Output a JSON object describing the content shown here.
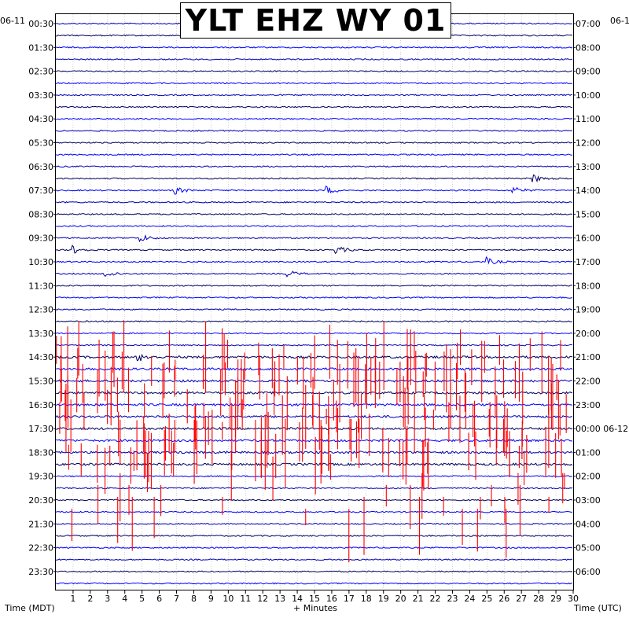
{
  "title": "YLT EHZ WY 01",
  "left_date": "06-11",
  "right_date": "06-1",
  "left_axis_title": "Time (MDT)",
  "right_axis_title": "Time (UTC)",
  "x_axis_title": "+ Minutes",
  "colors": {
    "trace_a": "#0000b4",
    "trace_b": "#000060",
    "trace_c": "#0000ff",
    "event": "#ff0000",
    "grid": "#b4b4b4"
  },
  "chart_data": {
    "type": "line",
    "title": "YLT EHZ WY 01",
    "xlabel": "+ Minutes",
    "ylabel_left": "Time (MDT)",
    "ylabel_right": "Time (UTC)",
    "xlim": [
      0,
      30
    ],
    "x_ticks": [
      "1",
      "2",
      "3",
      "4",
      "5",
      "6",
      "7",
      "8",
      "9",
      "10",
      "11",
      "12",
      "13",
      "14",
      "15",
      "16",
      "17",
      "18",
      "19",
      "20",
      "21",
      "22",
      "23",
      "24",
      "25",
      "26",
      "27",
      "28",
      "29",
      "30"
    ],
    "rows_per_hour": 2,
    "left_tick_labels": [
      "00:30",
      "01:30",
      "02:30",
      "03:30",
      "04:30",
      "05:30",
      "06:30",
      "07:30",
      "08:30",
      "09:30",
      "10:30",
      "11:30",
      "12:30",
      "13:30",
      "14:30",
      "15:30",
      "16:30",
      "17:30",
      "18:30",
      "19:30",
      "20:30",
      "21:30",
      "22:30",
      "23:30"
    ],
    "right_tick_labels": [
      "07:00",
      "08:00",
      "09:00",
      "10:00",
      "11:00",
      "12:00",
      "13:00",
      "14:00",
      "15:00",
      "16:00",
      "17:00",
      "18:00",
      "19:00",
      "20:00",
      "21:00",
      "22:00",
      "23:00",
      "00:00 06-12",
      "01:00",
      "02:00",
      "03:00",
      "04:00",
      "05:00",
      "06:00"
    ],
    "grid": true,
    "events": [
      {
        "row": 13,
        "minute": 27.6
      },
      {
        "row": 14,
        "minute": 6.8
      },
      {
        "row": 14,
        "minute": 15.6
      },
      {
        "row": 14,
        "minute": 26.4
      },
      {
        "row": 18,
        "minute": 4.8
      },
      {
        "row": 19,
        "minute": 16.2
      },
      {
        "row": 19,
        "minute": 0.9
      },
      {
        "row": 20,
        "minute": 24.9
      },
      {
        "row": 21,
        "minute": 2.8
      },
      {
        "row": 21,
        "minute": 13.3
      },
      {
        "row": 28,
        "minute": 4.7
      }
    ],
    "noise_band_rows": [
      28,
      37
    ]
  }
}
